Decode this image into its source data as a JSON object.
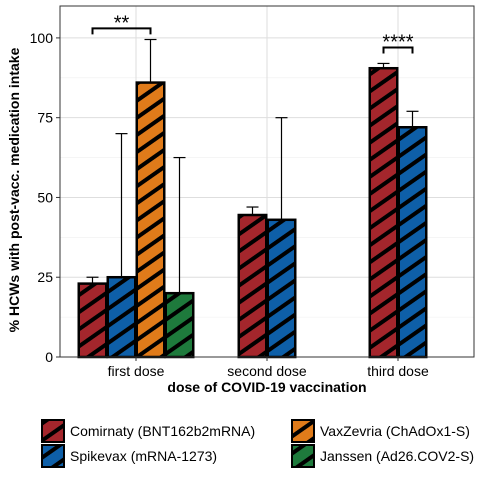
{
  "chart_data": {
    "type": "bar",
    "xlabel": "dose of COVID-19 vaccination",
    "ylabel": "% HCWs with post-vacc. medication intake",
    "ylim": [
      0,
      110
    ],
    "yticks": [
      0,
      25,
      50,
      75,
      100
    ],
    "grid": true,
    "legend_position": "bottom",
    "categories": [
      "first dose",
      "second dose",
      "third dose"
    ],
    "series": [
      {
        "name": "Comirnaty (BNT162b2mRNA)",
        "color": "#a4262c",
        "values": [
          23,
          44.5,
          90.5
        ],
        "err_upper": [
          25,
          47,
          92
        ]
      },
      {
        "name": "Spikevax (mRNA-1273)",
        "color": "#0e5fa8",
        "values": [
          25,
          43,
          72
        ],
        "err_upper": [
          70,
          75,
          77
        ]
      },
      {
        "name": "VaxZevria (ChAdOx1-S)",
        "color": "#e07b1a",
        "values": [
          86,
          null,
          null
        ],
        "err_upper": [
          99.5,
          null,
          null
        ]
      },
      {
        "name": "Janssen (Ad26.COV2-S)",
        "color": "#1e7a3c",
        "values": [
          20,
          null,
          null
        ],
        "err_upper": [
          62.5,
          null,
          null
        ]
      }
    ],
    "significance": [
      {
        "label": "**",
        "category": "first dose",
        "from_series": 0,
        "to_series": 2,
        "y": 103
      },
      {
        "label": "****",
        "category": "third dose",
        "from_series": 0,
        "to_series": 1,
        "y": 97
      }
    ]
  }
}
